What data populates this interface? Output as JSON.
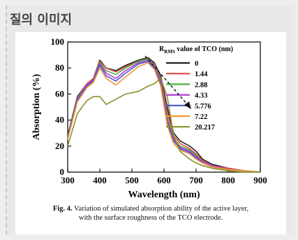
{
  "header": {
    "title": "질의 이미지"
  },
  "caption": {
    "label": "Fig. 4.",
    "line1": "Variation of simulated absorption ability of the active layer,",
    "line2": "with the surface roughness of the TCO electrode."
  },
  "chart_data": {
    "type": "line",
    "xlabel": "Wavelength (nm)",
    "ylabel": "Absorption (%)",
    "xlim": [
      300,
      900
    ],
    "ylim": [
      0,
      100
    ],
    "xticks": [
      300,
      400,
      500,
      600,
      700,
      800,
      900
    ],
    "yticks": [
      0,
      20,
      40,
      60,
      80,
      100
    ],
    "legend_title_prefix": "R",
    "legend_title_sub": "RMS",
    "legend_title_suffix": " value of TCO (nm)",
    "legend_position": "top-right",
    "grid": false,
    "x": [
      300,
      330,
      360,
      380,
      400,
      420,
      450,
      480,
      520,
      550,
      570,
      590,
      610,
      630,
      650,
      680,
      700,
      720,
      750,
      800,
      850,
      900
    ],
    "series": [
      {
        "name": "0",
        "color": "#222222",
        "values": [
          28,
          58,
          68,
          72,
          86,
          80,
          78,
          82,
          86,
          88,
          84,
          74,
          50,
          30,
          24,
          20,
          16,
          10,
          6,
          3,
          1,
          0
        ]
      },
      {
        "name": "1.44",
        "color": "#e04a4a",
        "values": [
          27,
          57,
          68,
          72,
          85,
          80,
          77,
          81,
          85,
          87,
          83,
          72,
          46,
          28,
          22,
          18,
          14,
          9,
          5,
          3,
          1,
          0
        ]
      },
      {
        "name": "2.88",
        "color": "#4caf3e",
        "values": [
          27,
          57,
          67,
          71,
          84,
          78,
          75,
          80,
          85,
          87,
          82,
          71,
          42,
          26,
          20,
          17,
          13,
          8,
          5,
          2,
          1,
          0
        ]
      },
      {
        "name": "4.33",
        "color": "#b03ad0",
        "values": [
          26,
          56,
          67,
          71,
          83,
          76,
          72,
          78,
          84,
          86,
          81,
          70,
          40,
          25,
          19,
          16,
          12,
          8,
          5,
          2,
          1,
          0
        ]
      },
      {
        "name": "5.776",
        "color": "#4a55d6",
        "values": [
          26,
          55,
          66,
          70,
          82,
          74,
          70,
          76,
          83,
          85,
          80,
          68,
          38,
          24,
          18,
          15,
          11,
          7,
          4,
          2,
          1,
          0
        ]
      },
      {
        "name": "7.22",
        "color": "#f2962e",
        "values": [
          25,
          54,
          65,
          69,
          80,
          72,
          67,
          73,
          81,
          84,
          79,
          66,
          36,
          22,
          17,
          14,
          10,
          7,
          4,
          2,
          1,
          0
        ]
      },
      {
        "name": "20.217",
        "color": "#8a8f2a",
        "values": [
          20,
          45,
          55,
          58,
          58,
          52,
          56,
          60,
          62,
          66,
          68,
          72,
          58,
          28,
          16,
          10,
          7,
          5,
          3,
          1,
          0,
          0
        ]
      }
    ]
  }
}
